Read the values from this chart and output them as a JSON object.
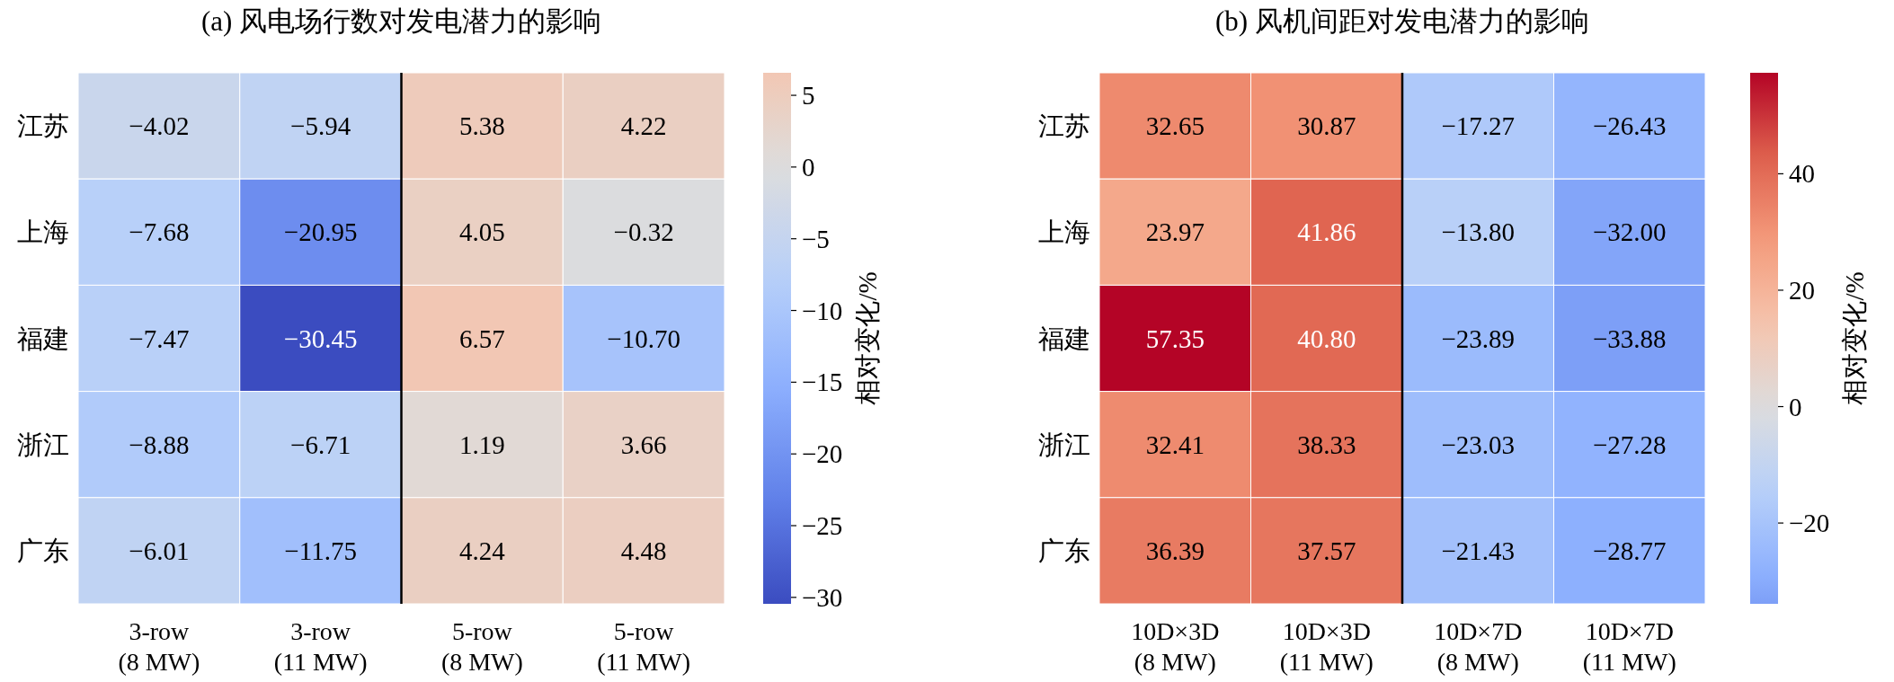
{
  "chart_data": [
    {
      "type": "heatmap",
      "title": "(a) 风电场行数对发电潜力的影响",
      "categories": [
        "3-row\n(8 MW)",
        "3-row\n(11 MW)",
        "5-row\n(8 MW)",
        "5-row\n(11 MW)"
      ],
      "y_categories": [
        "江苏",
        "上海",
        "福建",
        "浙江",
        "广东"
      ],
      "cells": [
        [
          -4.02,
          -5.94,
          5.38,
          4.22
        ],
        [
          -7.68,
          -20.95,
          4.05,
          -0.32
        ],
        [
          -7.47,
          -30.45,
          6.57,
          -10.7
        ],
        [
          -8.88,
          -6.71,
          1.19,
          3.66
        ],
        [
          -6.01,
          -11.75,
          4.24,
          4.48
        ]
      ],
      "cell_labels": [
        [
          "−4.02",
          "−5.94",
          "5.38",
          "4.22"
        ],
        [
          "−7.68",
          "−20.95",
          "4.05",
          "−0.32"
        ],
        [
          "−7.47",
          "−30.45",
          "6.57",
          "−10.70"
        ],
        [
          "−8.88",
          "−6.71",
          "1.19",
          "3.66"
        ],
        [
          "−6.01",
          "−11.75",
          "4.24",
          "4.48"
        ]
      ],
      "clim": [
        -30.45,
        6.57
      ],
      "cticks": [
        5,
        0,
        {
          "value": -5,
          "label": "−5"
        },
        {
          "value": -10,
          "label": "−10"
        },
        {
          "value": -15,
          "label": "−15"
        },
        {
          "value": -20,
          "label": "−20"
        },
        {
          "value": -25,
          "label": "−25"
        },
        {
          "value": -30,
          "label": "−30"
        }
      ],
      "clabel": "相对变化/%"
    },
    {
      "type": "heatmap",
      "title": "(b) 风机间距对发电潜力的影响",
      "categories": [
        "10D×3D\n(8 MW)",
        "10D×3D\n(11 MW)",
        "10D×7D\n(8 MW)",
        "10D×7D\n(11 MW)"
      ],
      "y_categories": [
        "江苏",
        "上海",
        "福建",
        "浙江",
        "广东"
      ],
      "cells": [
        [
          32.65,
          30.87,
          -17.27,
          -26.43
        ],
        [
          23.97,
          41.86,
          -13.8,
          -32.0
        ],
        [
          57.35,
          40.8,
          -23.89,
          -33.88
        ],
        [
          32.41,
          38.33,
          -23.03,
          -27.28
        ],
        [
          36.39,
          37.57,
          -21.43,
          -28.77
        ]
      ],
      "cell_labels": [
        [
          "32.65",
          "30.87",
          "−17.27",
          "−26.43"
        ],
        [
          "23.97",
          "41.86",
          "−13.80",
          "−32.00"
        ],
        [
          "57.35",
          "40.80",
          "−23.89",
          "−33.88"
        ],
        [
          "32.41",
          "38.33",
          "−23.03",
          "−27.28"
        ],
        [
          "36.39",
          "37.57",
          "−21.43",
          "−28.77"
        ]
      ],
      "clim": [
        -33.88,
        57.35
      ],
      "cticks": [
        40,
        20,
        0,
        {
          "value": -20,
          "label": "−20"
        }
      ],
      "clabel": "相对变化/%"
    }
  ]
}
